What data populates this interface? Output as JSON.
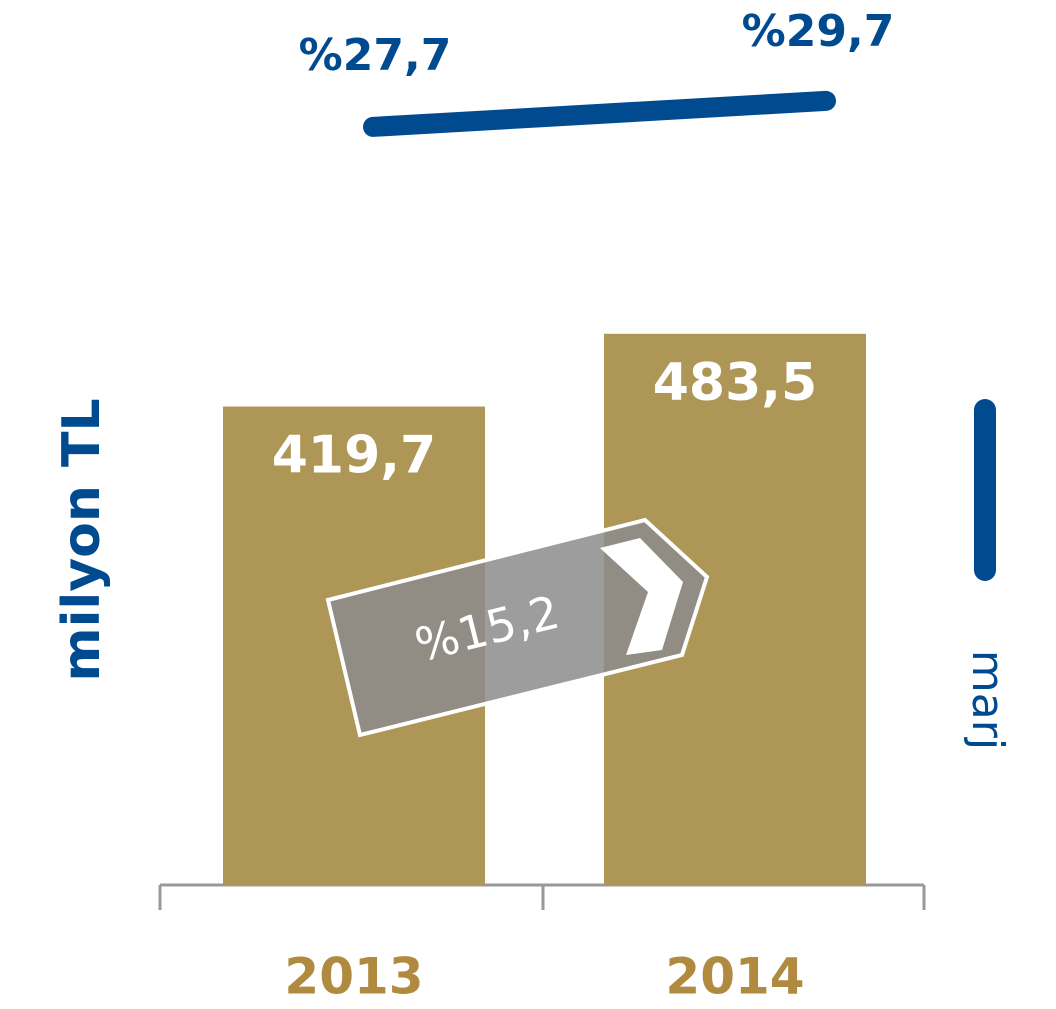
{
  "chart_data": {
    "type": "bar",
    "categories": [
      "2013",
      "2014"
    ],
    "y_label": "milyon TL",
    "y2_label": "marj",
    "annotation": "%15,2",
    "ylim": [
      0,
      500
    ],
    "y2lim": [
      25,
      32
    ],
    "series": [
      {
        "type": "bar",
        "color": "#ae9656",
        "values": [
          419.7,
          483.5
        ],
        "value_labels": [
          "419,7",
          "483,5"
        ]
      },
      {
        "type": "line",
        "name": "marj",
        "axis": "y2",
        "color": "#004a8f",
        "values": [
          27.7,
          29.7
        ],
        "value_labels": [
          "%27,7",
          "%29,7"
        ]
      }
    ]
  }
}
